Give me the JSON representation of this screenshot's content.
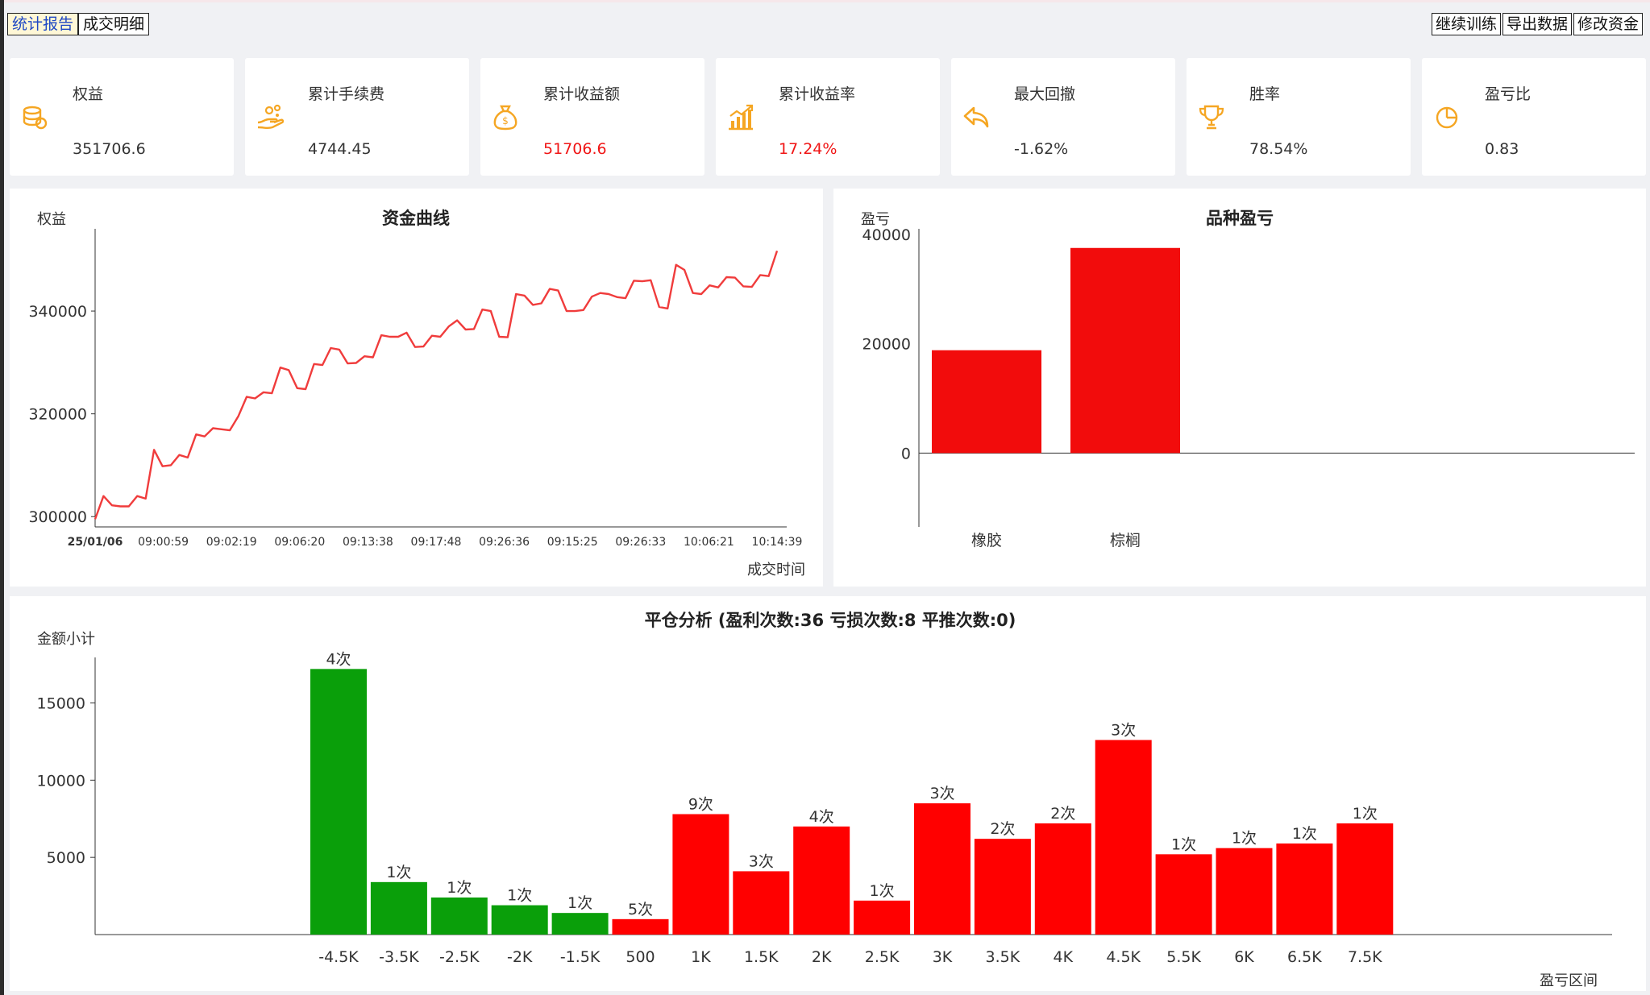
{
  "tabs": [
    "统计报告",
    "成交明细"
  ],
  "actions": [
    "继续训练",
    "导出数据",
    "修改资金"
  ],
  "stats": [
    {
      "label": "权益",
      "value": "351706.6",
      "icon": "coins-icon",
      "value_color": "normal"
    },
    {
      "label": "累计手续费",
      "value": "4744.45",
      "icon": "hand-coins-icon",
      "value_color": "normal"
    },
    {
      "label": "累计收益额",
      "value": "51706.6",
      "icon": "money-bag-icon",
      "value_color": "red"
    },
    {
      "label": "累计收益率",
      "value": "17.24%",
      "icon": "bar-growth-icon",
      "value_color": "red"
    },
    {
      "label": "最大回撤",
      "value": "-1.62%",
      "icon": "undo-arrow-icon",
      "value_color": "normal"
    },
    {
      "label": "胜率",
      "value": "78.54%",
      "icon": "trophy-icon",
      "value_color": "normal"
    },
    {
      "label": "盈亏比",
      "value": "0.83",
      "icon": "pie-icon",
      "value_color": "normal"
    }
  ],
  "colors": {
    "accent": "#f5a623",
    "loss": "#0a9f0a",
    "profit": "#ff0000",
    "line": "#f03c3c",
    "variety_bar": "#f20c0c"
  },
  "chart_data": [
    {
      "type": "line",
      "title": "资金曲线",
      "ylabel": "权益",
      "xlabel": "成交时间",
      "x_ticks": [
        "25/01/06",
        "09:00:59",
        "09:02:19",
        "09:06:20",
        "09:13:38",
        "09:17:48",
        "09:26:36",
        "09:15:25",
        "09:26:33",
        "10:06:21",
        "10:14:39"
      ],
      "y_ticks": [
        300000,
        320000,
        340000
      ],
      "ylim": [
        298000,
        356000
      ],
      "grid": false,
      "series": [
        {
          "values": [
            299500,
            304000,
            302200,
            302000,
            302000,
            304000,
            303500,
            313000,
            309800,
            310000,
            312000,
            311500,
            316000,
            315600,
            317200,
            317000,
            316800,
            319500,
            323300,
            323000,
            324200,
            324000,
            329000,
            328500,
            325000,
            324800,
            329700,
            329500,
            332800,
            332500,
            329800,
            329900,
            331200,
            331000,
            335300,
            335000,
            335000,
            335800,
            333000,
            333100,
            335200,
            335000,
            337000,
            338200,
            336400,
            336500,
            340300,
            340000,
            335000,
            334900,
            343300,
            343000,
            341200,
            341500,
            344300,
            344000,
            340000,
            340000,
            340200,
            342800,
            343500,
            343300,
            342700,
            342500,
            345900,
            345800,
            346000,
            340800,
            340500,
            349000,
            348000,
            343500,
            343300,
            345000,
            344600,
            346600,
            346500,
            344800,
            344700,
            347000,
            346800,
            351700
          ]
        }
      ]
    },
    {
      "type": "bar",
      "title": "品种盈亏",
      "ylabel": "盈亏",
      "categories": [
        "橡胶",
        "棕榈"
      ],
      "values": [
        18800,
        37500
      ],
      "y_ticks": [
        0,
        20000,
        40000
      ],
      "ylim": [
        -13500,
        41000
      ],
      "grid": false
    },
    {
      "type": "bar",
      "title": "平仓分析 (盈利次数:36 亏损次数:8 平推次数:0)",
      "ylabel": "金额小计",
      "xlabel": "盈亏区间",
      "categories": [
        "-4.5K",
        "-3.5K",
        "-2.5K",
        "-2K",
        "-1.5K",
        "500",
        "1K",
        "1.5K",
        "2K",
        "2.5K",
        "3K",
        "3.5K",
        "4K",
        "4.5K",
        "5.5K",
        "6K",
        "6.5K",
        "7.5K"
      ],
      "values": [
        17200,
        3400,
        2400,
        1900,
        1400,
        1000,
        7800,
        4100,
        7000,
        2200,
        8500,
        6200,
        7200,
        12600,
        5200,
        5600,
        5900,
        7200
      ],
      "counts": [
        "4次",
        "1次",
        "1次",
        "1次",
        "1次",
        "5次",
        "9次",
        "3次",
        "4次",
        "1次",
        "3次",
        "2次",
        "2次",
        "3次",
        "1次",
        "1次",
        "1次",
        "1次"
      ],
      "y_ticks": [
        5000,
        10000,
        15000
      ],
      "ylim": [
        0,
        18000
      ],
      "grid": false
    }
  ]
}
